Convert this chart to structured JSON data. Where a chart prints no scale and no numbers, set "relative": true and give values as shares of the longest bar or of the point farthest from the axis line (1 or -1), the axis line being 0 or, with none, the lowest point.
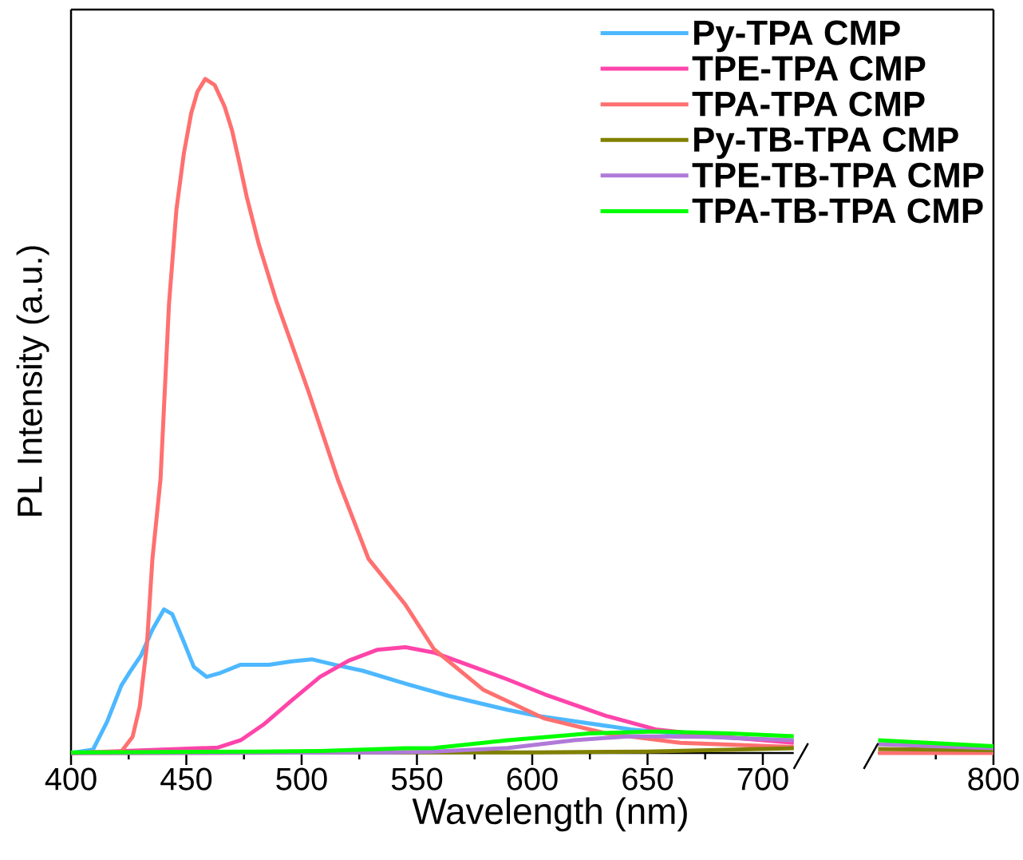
{
  "chart_data": {
    "type": "line",
    "relative": true,
    "xlabel": "Wavelength (nm)",
    "ylabel": "PL Intensity (a.u.)",
    "legend": "top right",
    "xlim": [
      400,
      800
    ],
    "xticks": [
      400,
      {
        "value": 425,
        "label": null
      },
      450,
      {
        "value": 475,
        "label": null
      },
      500,
      {
        "value": 525,
        "label": null
      },
      550,
      {
        "value": 575,
        "label": null
      },
      600,
      {
        "value": 625,
        "label": null
      },
      650,
      {
        "value": 675,
        "label": null
      },
      700,
      {
        "value": 775,
        "label": null
      },
      800
    ],
    "series": [
      {
        "name": "Py-TPA CMP",
        "color": "#4db8ff",
        "x": [
          400,
          409.5,
          415.6,
          421.8,
          425.5,
          430.4,
          435.3,
          440.3,
          443.9,
          448.9,
          453.2,
          458.8,
          464.9,
          473.6,
          485.9,
          495.7,
          504.4,
          514.2,
          526.5,
          545,
          563.5,
          589.4,
          602.2,
          642.8,
          674.9,
          713.4
        ],
        "values": [
          0,
          0.005,
          0.046,
          0.1,
          0.12,
          0.145,
          0.183,
          0.213,
          0.206,
          0.165,
          0.128,
          0.113,
          0.119,
          0.131,
          0.131,
          0.136,
          0.139,
          0.131,
          0.122,
          0.103,
          0.085,
          0.064,
          0.055,
          0.035,
          0.025,
          0.017
        ]
      },
      {
        "name": "TPE-TPA CMP",
        "color": "#ff44aa",
        "x": [
          400,
          463.7,
          473.6,
          483.4,
          495.7,
          508,
          520.4,
          532.7,
          545,
          557.4,
          575.9,
          589.4,
          605.4,
          632.1,
          653.5,
          685.6,
          713.4
        ],
        "values": [
          0,
          0.008,
          0.019,
          0.042,
          0.078,
          0.113,
          0.137,
          0.153,
          0.157,
          0.149,
          0.126,
          0.109,
          0.087,
          0.055,
          0.035,
          0.023,
          0.015
        ]
      },
      {
        "name": "TPA-TPA CMP",
        "color": "#ff7070",
        "x": [
          400,
          421.8,
          426.7,
          429.8,
          432.9,
          435.3,
          438.8,
          442.5,
          445.7,
          448.9,
          452.1,
          454.8,
          458.2,
          462.3,
          466.6,
          469.8,
          473,
          476.2,
          481.5,
          489,
          502.9,
          515.7,
          529,
          545,
          557.4,
          578.7,
          605.4,
          632.1,
          664.2,
          713.4,
          732,
          750,
          775,
          800
        ],
        "values": [
          0,
          0.002,
          0.024,
          0.069,
          0.16,
          0.288,
          0.406,
          0.667,
          0.806,
          0.889,
          0.949,
          0.981,
          1,
          0.991,
          0.959,
          0.924,
          0.876,
          0.825,
          0.754,
          0.671,
          0.537,
          0.406,
          0.288,
          0.22,
          0.154,
          0.094,
          0.051,
          0.029,
          0.015,
          0.009,
          null,
          0,
          0,
          0
        ]
      },
      {
        "name": "Py-TB-TPA CMP",
        "color": "#808000",
        "x": [
          400,
          600,
          650,
          713.4,
          732,
          750,
          775,
          800
        ],
        "values": [
          0,
          0.001,
          0.002,
          0.007,
          null,
          0.006,
          0.005,
          0.004
        ]
      },
      {
        "name": "TPE-TB-TPA CMP",
        "color": "#b07ad8",
        "x": [
          400,
          540,
          557.4,
          589.4,
          618.2,
          642.8,
          675,
          713.4,
          732,
          750,
          775,
          800
        ],
        "values": [
          0,
          0.001,
          0.002,
          0.0075,
          0.019,
          0.025,
          0.024,
          0.019,
          null,
          0.013,
          0.01,
          0.007
        ]
      },
      {
        "name": "TPA-TB-TPA CMP",
        "color": "#00ff00",
        "x": [
          400,
          480,
          508,
          545,
          557.4,
          589.4,
          624.7,
          653.5,
          685.6,
          713.4,
          732,
          750,
          775,
          800
        ],
        "values": [
          0.001,
          0.002,
          0.003,
          0.007,
          0.0075,
          0.019,
          0.029,
          0.032,
          0.029,
          0.025,
          null,
          0.019,
          0.0145,
          0.01
        ]
      }
    ]
  }
}
